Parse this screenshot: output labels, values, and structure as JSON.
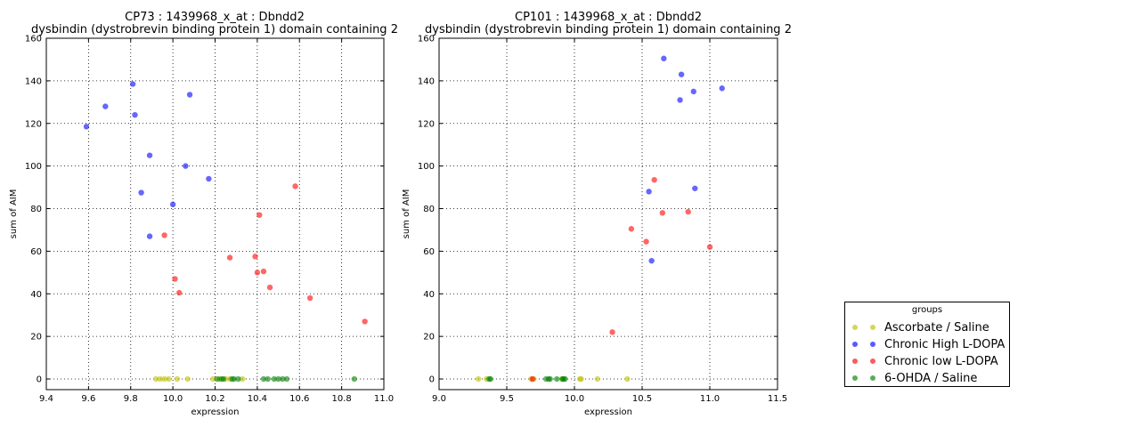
{
  "chart_data": [
    {
      "type": "scatter",
      "title": "CP73 : 1439968_x_at : Dbndd2",
      "subtitle": "dysbindin (dystrobrevin binding protein 1) domain containing 2",
      "xlabel": "expression",
      "ylabel": "sum of AIM",
      "xlim": [
        9.4,
        11.0
      ],
      "ylim": [
        -5,
        160
      ],
      "xticks": [
        "9.4",
        "9.6",
        "9.8",
        "10.0",
        "10.2",
        "10.4",
        "10.6",
        "10.8",
        "11.0"
      ],
      "yticks": [
        "0",
        "20",
        "40",
        "60",
        "80",
        "100",
        "120",
        "140",
        "160"
      ],
      "grid": true,
      "series": [
        {
          "name": "Ascorbate / Saline",
          "color": "#bfbf00",
          "x": [
            9.92,
            9.94,
            9.96,
            9.98,
            10.02,
            10.07,
            10.19,
            10.22,
            10.25,
            10.27,
            10.33
          ],
          "y": [
            0,
            0,
            0,
            0,
            0,
            0,
            0,
            0,
            0,
            0,
            0
          ]
        },
        {
          "name": "Chronic High L-DOPA",
          "color": "#0000ff",
          "x": [
            9.59,
            9.68,
            9.81,
            9.82,
            9.85,
            9.89,
            9.89,
            10.0,
            10.06,
            10.08,
            10.17
          ],
          "y": [
            118.5,
            128.0,
            138.5,
            124.0,
            87.5,
            105.0,
            67.0,
            82.0,
            100.0,
            133.5,
            94.0
          ]
        },
        {
          "name": "Chronic low L-DOPA",
          "color": "#ff0000",
          "x": [
            9.96,
            10.01,
            10.03,
            10.27,
            10.39,
            10.4,
            10.41,
            10.43,
            10.46,
            10.58,
            10.65,
            10.91
          ],
          "y": [
            67.5,
            47.0,
            40.5,
            57.0,
            57.5,
            50.0,
            77.0,
            50.5,
            43.0,
            90.5,
            38.0,
            27.0
          ]
        },
        {
          "name": "6-OHDA / Saline",
          "color": "#008000",
          "x": [
            10.21,
            10.23,
            10.24,
            10.28,
            10.29,
            10.31,
            10.43,
            10.45,
            10.48,
            10.5,
            10.52,
            10.54,
            10.86
          ],
          "y": [
            0,
            0,
            0,
            0,
            0,
            0,
            0,
            0,
            0,
            0,
            0,
            0,
            0
          ]
        }
      ]
    },
    {
      "type": "scatter",
      "title": "CP101 : 1439968_x_at : Dbndd2",
      "subtitle": "dysbindin (dystrobrevin binding protein 1) domain containing 2",
      "xlabel": "expression",
      "ylabel": "sum of AIM",
      "xlim": [
        9.0,
        11.5
      ],
      "ylim": [
        -5,
        160
      ],
      "xticks": [
        "9.0",
        "9.5",
        "10.0",
        "10.5",
        "11.0",
        "11.5"
      ],
      "yticks": [
        "0",
        "20",
        "40",
        "60",
        "80",
        "100",
        "120",
        "140",
        "160"
      ],
      "grid": true,
      "series": [
        {
          "name": "Ascorbate / Saline",
          "color": "#bfbf00",
          "x": [
            9.29,
            9.35,
            9.68,
            9.7,
            9.91,
            10.04,
            10.05,
            10.17,
            10.39
          ],
          "y": [
            0,
            0,
            0,
            0,
            0,
            0,
            0,
            0,
            0
          ]
        },
        {
          "name": "Chronic High L-DOPA",
          "color": "#0000ff",
          "x": [
            10.55,
            10.57,
            10.66,
            10.78,
            10.79,
            10.88,
            10.89,
            11.09
          ],
          "y": [
            88.0,
            55.5,
            150.5,
            131.0,
            143.0,
            135.0,
            89.5,
            136.5
          ]
        },
        {
          "name": "Chronic low L-DOPA",
          "color": "#ff0000",
          "x": [
            9.69,
            10.28,
            10.42,
            10.53,
            10.59,
            10.65,
            10.84,
            11.0
          ],
          "y": [
            0,
            22.0,
            70.5,
            64.5,
            93.5,
            78.0,
            78.5,
            62.0
          ]
        },
        {
          "name": "6-OHDA / Saline",
          "color": "#008000",
          "x": [
            9.37,
            9.38,
            9.79,
            9.81,
            9.82,
            9.87,
            9.91,
            9.92,
            9.93
          ],
          "y": [
            0,
            0,
            0,
            0,
            0,
            0,
            0,
            0,
            0
          ]
        }
      ]
    }
  ],
  "legend": {
    "title": "groups",
    "entries": [
      {
        "label": "Ascorbate / Saline",
        "color": "#bfbf00"
      },
      {
        "label": "Chronic High L-DOPA",
        "color": "#0000ff"
      },
      {
        "label": "Chronic low L-DOPA",
        "color": "#ff0000"
      },
      {
        "label": "6-OHDA / Saline",
        "color": "#008000"
      }
    ]
  }
}
